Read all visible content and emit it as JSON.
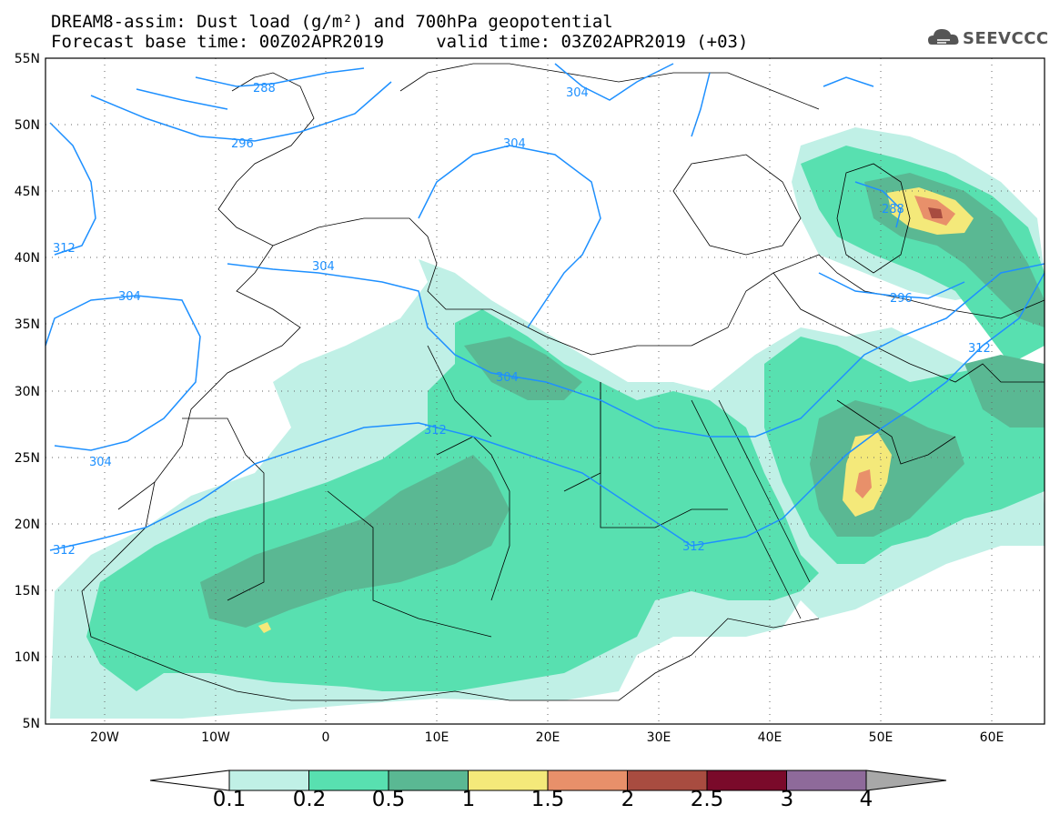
{
  "title": {
    "line1": "DREAM8-assim: Dust load (g/m²) and 700hPa geopotential",
    "line2": "Forecast base time: 00Z02APR2019     valid time: 03Z02APR2019 (+03)"
  },
  "logo": {
    "text": "SEEVCCC",
    "icon": "cloud-icon"
  },
  "axes": {
    "lat_labels": [
      "55N",
      "50N",
      "45N",
      "40N",
      "35N",
      "30N",
      "25N",
      "20N",
      "15N",
      "10N",
      "5N"
    ],
    "lon_labels": [
      "20W",
      "10W",
      "0",
      "10E",
      "20E",
      "30E",
      "40E",
      "50E",
      "60E"
    ],
    "lat_range": [
      5,
      55
    ],
    "lon_range": [
      -25,
      65
    ]
  },
  "contour_labels": [
    "288",
    "296",
    "304",
    "304",
    "304",
    "312",
    "304",
    "304",
    "312",
    "304",
    "312",
    "312",
    "288",
    "296",
    "312"
  ],
  "colorbar": {
    "levels": [
      "0.1",
      "0.2",
      "0.5",
      "1",
      "1.5",
      "2",
      "2.5",
      "3",
      "4"
    ],
    "colors": [
      "#c0f0e6",
      "#58e0b0",
      "#5ab893",
      "#f4e97a",
      "#e8906a",
      "#a84c40",
      "#7a0a2a",
      "#8e6a9a"
    ],
    "under_color": "#ffffff",
    "over_color": "#a8a8a8"
  },
  "colors": {
    "contour": "#1e90ff",
    "border": "#000000"
  }
}
